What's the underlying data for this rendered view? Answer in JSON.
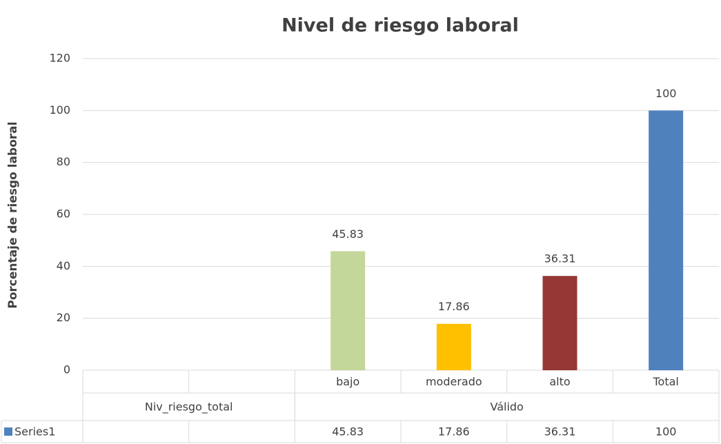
{
  "chart_data": {
    "type": "bar",
    "title": "Nivel de riesgo laboral",
    "y_label": "Porcentaje de riesgo laboral",
    "categories": [
      null,
      null,
      "bajo",
      "moderado",
      "alto",
      "Total"
    ],
    "groups": [
      {
        "label": "Niv_riesgo_total",
        "span": 2
      },
      {
        "label": "Válido",
        "span": 4
      }
    ],
    "series": [
      {
        "name": "Series1",
        "color": "#4f81bd",
        "colors": [
          null,
          null,
          "#c4d79b",
          "#ffc000",
          "#953735",
          "#4f81bd"
        ],
        "values": [
          null,
          null,
          45.83,
          17.86,
          36.31,
          100
        ]
      }
    ],
    "ylim": [
      0,
      120
    ],
    "yticks": [
      0,
      20,
      40,
      60,
      80,
      100,
      120
    ],
    "grid": true,
    "data_labels": true,
    "data_table": true
  }
}
